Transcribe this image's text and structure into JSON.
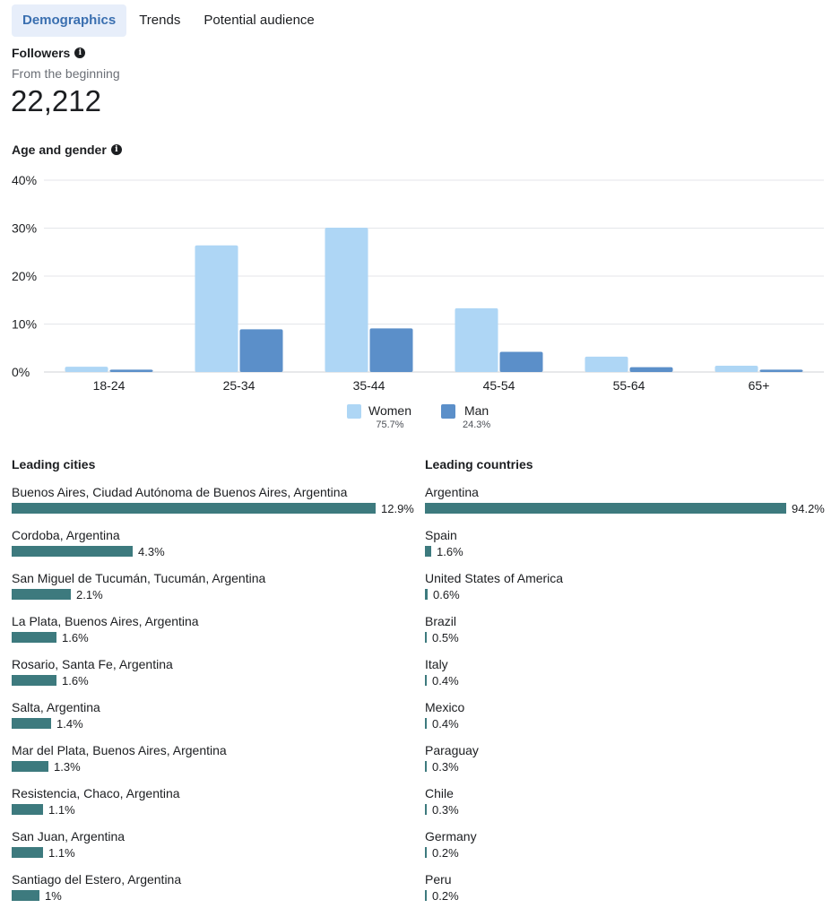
{
  "tabs": [
    "Demographics",
    "Trends",
    "Potential audience"
  ],
  "followers": {
    "title": "Followers",
    "subtitle": "From the beginning",
    "count": "22,212"
  },
  "age_gender": {
    "title": "Age and gender"
  },
  "chart_data": {
    "type": "bar",
    "categories": [
      "18-24",
      "25-34",
      "35-44",
      "45-54",
      "55-64",
      "65+"
    ],
    "series": [
      {
        "name": "Women",
        "values": [
          1.1,
          26.4,
          30.1,
          13.3,
          3.2,
          1.3
        ],
        "color": "#aed6f5"
      },
      {
        "name": "Man",
        "values": [
          0.5,
          8.9,
          9.1,
          4.2,
          1.0,
          0.5
        ],
        "color": "#5b8fc9"
      }
    ],
    "ylim": [
      0,
      40
    ],
    "yticks": [
      "0%",
      "10%",
      "20%",
      "30%",
      "40%"
    ],
    "grid": true,
    "legend": [
      {
        "name": "Women",
        "pct": "75.7%"
      },
      {
        "name": "Man",
        "pct": "24.3%"
      }
    ]
  },
  "cities": {
    "title": "Leading cities",
    "items": [
      {
        "name": "Buenos Aires, Ciudad Autónoma de Buenos Aires, Argentina",
        "pct": "12.9%",
        "value": 12.9
      },
      {
        "name": "Cordoba, Argentina",
        "pct": "4.3%",
        "value": 4.3
      },
      {
        "name": "San Miguel de Tucumán, Tucumán, Argentina",
        "pct": "2.1%",
        "value": 2.1
      },
      {
        "name": "La Plata, Buenos Aires, Argentina",
        "pct": "1.6%",
        "value": 1.6
      },
      {
        "name": "Rosario, Santa Fe, Argentina",
        "pct": "1.6%",
        "value": 1.6
      },
      {
        "name": "Salta, Argentina",
        "pct": "1.4%",
        "value": 1.4
      },
      {
        "name": "Mar del Plata, Buenos Aires, Argentina",
        "pct": "1.3%",
        "value": 1.3
      },
      {
        "name": "Resistencia, Chaco, Argentina",
        "pct": "1.1%",
        "value": 1.1
      },
      {
        "name": "San Juan, Argentina",
        "pct": "1.1%",
        "value": 1.1
      },
      {
        "name": "Santiago del Estero, Argentina",
        "pct": "1%",
        "value": 1.0
      }
    ]
  },
  "countries": {
    "title": "Leading countries",
    "items": [
      {
        "name": "Argentina",
        "pct": "94.2%",
        "value": 94.2
      },
      {
        "name": "Spain",
        "pct": "1.6%",
        "value": 1.6
      },
      {
        "name": "United States of America",
        "pct": "0.6%",
        "value": 0.6
      },
      {
        "name": "Brazil",
        "pct": "0.5%",
        "value": 0.5
      },
      {
        "name": "Italy",
        "pct": "0.4%",
        "value": 0.4
      },
      {
        "name": "Mexico",
        "pct": "0.4%",
        "value": 0.4
      },
      {
        "name": "Paraguay",
        "pct": "0.3%",
        "value": 0.3
      },
      {
        "name": "Chile",
        "pct": "0.3%",
        "value": 0.3
      },
      {
        "name": "Germany",
        "pct": "0.2%",
        "value": 0.2
      },
      {
        "name": "Peru",
        "pct": "0.2%",
        "value": 0.2
      }
    ]
  },
  "colors": {
    "bar": "#3d7a7e",
    "tab_active_bg": "#e7eefa",
    "tab_active_text": "#3a6fb0"
  },
  "icons": {
    "info": "info-icon"
  }
}
